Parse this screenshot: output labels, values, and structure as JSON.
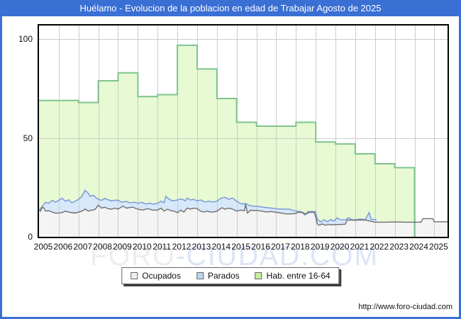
{
  "window": {
    "title": "Huélamo - Evolucion de la poblacion en edad de Trabajar Agosto de 2025",
    "url": "http://www.foro-ciudad.com"
  },
  "watermark": {
    "left": "FORO",
    "right": "-CIUDAD.COM"
  },
  "legend": {
    "items": [
      {
        "label": "Ocupados",
        "fill": "#f0f0f0",
        "border": "#666666"
      },
      {
        "label": "Parados",
        "fill": "#bcd6f0",
        "border": "#666666"
      },
      {
        "label": "Hab. entre 16-64",
        "fill": "#c9ef9f",
        "border": "#666666"
      }
    ]
  },
  "colors": {
    "frame": "#3a6fd4",
    "plot_border": "#000000",
    "grid": "#cccccc",
    "ocupados_line": "#6e6e6e",
    "ocupados_fill": "#f4f4f4",
    "parados_line": "#7b9bd7",
    "parados_fill": "#d7e8fa",
    "hab_line": "#7ec48e",
    "hab_fill": "#e7fad3"
  },
  "chart_data": {
    "type": "area",
    "title": "Huélamo - Evolucion de la poblacion en edad de Trabajar Agosto de 2025",
    "xlabel": "",
    "ylabel": "",
    "x_range": [
      2005,
      2025.667
    ],
    "ylim": [
      0,
      107
    ],
    "yticks": [
      0,
      50,
      100
    ],
    "xticks": [
      2005,
      2006,
      2007,
      2008,
      2009,
      2010,
      2011,
      2012,
      2013,
      2014,
      2015,
      2016,
      2017,
      2018,
      2019,
      2020,
      2021,
      2022,
      2023,
      2024,
      2025
    ],
    "grid": true,
    "legend_position": "bottom",
    "series": [
      {
        "name": "Hab. entre 16-64",
        "kind": "annual_step",
        "years": [
          2005,
          2006,
          2007,
          2008,
          2009,
          2010,
          2011,
          2012,
          2013,
          2014,
          2015,
          2016,
          2017,
          2018,
          2019,
          2020,
          2021,
          2022,
          2023
        ],
        "values": [
          69,
          69,
          68,
          79,
          83,
          71,
          72,
          97,
          85,
          70,
          58,
          56,
          56,
          58,
          48,
          47,
          42,
          37,
          35
        ],
        "ends_at": 2024
      },
      {
        "name": "Parados",
        "kind": "monthly_line",
        "points": [
          [
            2005.0,
            13.5
          ],
          [
            2005.1,
            14.5
          ],
          [
            2005.2,
            16
          ],
          [
            2005.33,
            17.5
          ],
          [
            2005.5,
            17
          ],
          [
            2005.67,
            18.5
          ],
          [
            2005.83,
            17.5
          ],
          [
            2006.0,
            18.5
          ],
          [
            2006.17,
            19.5
          ],
          [
            2006.33,
            18
          ],
          [
            2006.5,
            18.7
          ],
          [
            2006.67,
            17.2
          ],
          [
            2006.83,
            18
          ],
          [
            2007.0,
            19
          ],
          [
            2007.17,
            20.5
          ],
          [
            2007.33,
            23.5
          ],
          [
            2007.5,
            22
          ],
          [
            2007.58,
            20.5
          ],
          [
            2007.75,
            21
          ],
          [
            2007.92,
            19.5
          ],
          [
            2008.0,
            19
          ],
          [
            2008.17,
            18.5
          ],
          [
            2008.33,
            19.5
          ],
          [
            2008.5,
            18.7
          ],
          [
            2008.67,
            18.2
          ],
          [
            2008.83,
            18.5
          ],
          [
            2009.0,
            18.5
          ],
          [
            2009.2,
            17.5
          ],
          [
            2009.4,
            18
          ],
          [
            2009.6,
            17.2
          ],
          [
            2009.8,
            17.5
          ],
          [
            2010.0,
            17
          ],
          [
            2010.2,
            17.5
          ],
          [
            2010.4,
            16.6
          ],
          [
            2010.6,
            17
          ],
          [
            2010.8,
            16.5
          ],
          [
            2011.0,
            17
          ],
          [
            2011.17,
            18
          ],
          [
            2011.33,
            17.2
          ],
          [
            2011.42,
            20.5
          ],
          [
            2011.58,
            19
          ],
          [
            2011.75,
            18.2
          ],
          [
            2012.0,
            18.6
          ],
          [
            2012.2,
            19.2
          ],
          [
            2012.4,
            18.2
          ],
          [
            2012.5,
            19.6
          ],
          [
            2012.65,
            18.6
          ],
          [
            2012.8,
            19
          ],
          [
            2013.0,
            18.2
          ],
          [
            2013.2,
            18.6
          ],
          [
            2013.4,
            17.6
          ],
          [
            2013.6,
            18
          ],
          [
            2013.8,
            17.6
          ],
          [
            2014.0,
            18
          ],
          [
            2014.2,
            19.5
          ],
          [
            2014.4,
            20
          ],
          [
            2014.6,
            19
          ],
          [
            2014.8,
            19.6
          ],
          [
            2015.0,
            18
          ],
          [
            2015.25,
            16.6
          ],
          [
            2015.45,
            16.9
          ],
          [
            2015.6,
            16
          ],
          [
            2015.8,
            15.6
          ],
          [
            2016.0,
            15.5
          ],
          [
            2016.33,
            15
          ],
          [
            2016.67,
            14.6
          ],
          [
            2017.0,
            14.2
          ],
          [
            2017.33,
            14
          ],
          [
            2017.67,
            14
          ],
          [
            2018.0,
            13
          ],
          [
            2018.25,
            12.8
          ],
          [
            2018.45,
            11
          ],
          [
            2018.6,
            12.8
          ],
          [
            2018.85,
            12.8
          ],
          [
            2019.0,
            12.8
          ],
          [
            2019.08,
            8.8
          ],
          [
            2019.25,
            7.5
          ],
          [
            2019.42,
            8.6
          ],
          [
            2019.58,
            7.6
          ],
          [
            2019.75,
            8.6
          ],
          [
            2019.92,
            8
          ],
          [
            2020.08,
            9.6
          ],
          [
            2020.25,
            8.6
          ],
          [
            2020.5,
            8.6
          ],
          [
            2020.67,
            9.6
          ],
          [
            2020.83,
            8.6
          ],
          [
            2021.0,
            8.6
          ],
          [
            2021.25,
            9
          ],
          [
            2021.5,
            8.6
          ],
          [
            2021.7,
            12.2
          ],
          [
            2021.8,
            8.8
          ],
          [
            2022.0,
            8.7
          ],
          [
            2022.08,
            8.7
          ]
        ]
      },
      {
        "name": "Ocupados",
        "kind": "monthly_line",
        "points": [
          [
            2005.0,
            13.5
          ],
          [
            2005.08,
            13
          ],
          [
            2005.17,
            15
          ],
          [
            2005.25,
            14.5
          ],
          [
            2005.33,
            13
          ],
          [
            2005.5,
            13.2
          ],
          [
            2005.67,
            12.5
          ],
          [
            2005.83,
            12
          ],
          [
            2006.0,
            12
          ],
          [
            2006.17,
            12.2
          ],
          [
            2006.33,
            13
          ],
          [
            2006.5,
            12.5
          ],
          [
            2006.67,
            12.2
          ],
          [
            2006.83,
            12
          ],
          [
            2007.0,
            12.5
          ],
          [
            2007.17,
            13
          ],
          [
            2007.33,
            14
          ],
          [
            2007.5,
            13
          ],
          [
            2007.67,
            13.5
          ],
          [
            2007.83,
            13.8
          ],
          [
            2008.0,
            16
          ],
          [
            2008.17,
            14.5
          ],
          [
            2008.33,
            15
          ],
          [
            2008.5,
            14.2
          ],
          [
            2008.67,
            14
          ],
          [
            2008.83,
            14.5
          ],
          [
            2009.0,
            14
          ],
          [
            2009.25,
            15.5
          ],
          [
            2009.42,
            14.5
          ],
          [
            2009.58,
            14.8
          ],
          [
            2009.75,
            15
          ],
          [
            2009.92,
            14.2
          ],
          [
            2010.0,
            14
          ],
          [
            2010.25,
            13.5
          ],
          [
            2010.5,
            14.3
          ],
          [
            2010.75,
            13.5
          ],
          [
            2011.0,
            13.5
          ],
          [
            2011.17,
            14.5
          ],
          [
            2011.33,
            13
          ],
          [
            2011.5,
            14
          ],
          [
            2011.67,
            13.2
          ],
          [
            2011.83,
            13
          ],
          [
            2012.0,
            12.2
          ],
          [
            2012.17,
            13.5
          ],
          [
            2012.33,
            12.5
          ],
          [
            2012.5,
            14.5
          ],
          [
            2012.67,
            14
          ],
          [
            2012.83,
            14.5
          ],
          [
            2013.0,
            14.3
          ],
          [
            2013.17,
            13
          ],
          [
            2013.33,
            12.5
          ],
          [
            2013.5,
            13
          ],
          [
            2013.67,
            12.6
          ],
          [
            2013.83,
            12.5
          ],
          [
            2014.0,
            13
          ],
          [
            2014.25,
            14.7
          ],
          [
            2014.42,
            14
          ],
          [
            2014.58,
            14.5
          ],
          [
            2014.75,
            14.2
          ],
          [
            2015.0,
            13
          ],
          [
            2015.2,
            13.5
          ],
          [
            2015.4,
            13.2
          ],
          [
            2015.45,
            16.5
          ],
          [
            2015.55,
            12
          ],
          [
            2015.7,
            13.5
          ],
          [
            2015.85,
            13.3
          ],
          [
            2016.0,
            13.4
          ],
          [
            2016.25,
            13
          ],
          [
            2016.5,
            12.6
          ],
          [
            2016.75,
            12.8
          ],
          [
            2017.0,
            12.4
          ],
          [
            2017.25,
            12
          ],
          [
            2017.5,
            11.6
          ],
          [
            2017.75,
            11.6
          ],
          [
            2018.0,
            11.8
          ],
          [
            2018.08,
            12.4
          ],
          [
            2018.33,
            12.4
          ],
          [
            2018.5,
            11.4
          ],
          [
            2018.67,
            12.4
          ],
          [
            2018.92,
            12.4
          ],
          [
            2019.0,
            10
          ],
          [
            2019.08,
            6.5
          ],
          [
            2019.17,
            5.8
          ],
          [
            2019.33,
            6.5
          ],
          [
            2019.5,
            5.8
          ],
          [
            2019.67,
            6.3
          ],
          [
            2019.83,
            6
          ],
          [
            2020.0,
            6.2
          ],
          [
            2020.25,
            6.2
          ],
          [
            2020.5,
            6.4
          ],
          [
            2020.58,
            8.4
          ],
          [
            2020.75,
            8.4
          ],
          [
            2021.0,
            8.4
          ],
          [
            2021.5,
            8.5
          ],
          [
            2022.0,
            7.4
          ],
          [
            2022.5,
            7.4
          ],
          [
            2023.0,
            7.5
          ],
          [
            2023.5,
            7.4
          ],
          [
            2024.0,
            7.4
          ],
          [
            2024.33,
            7.4
          ],
          [
            2024.42,
            9.2
          ],
          [
            2024.92,
            9.2
          ],
          [
            2025.0,
            7.6
          ],
          [
            2025.67,
            7.6
          ]
        ]
      }
    ]
  }
}
